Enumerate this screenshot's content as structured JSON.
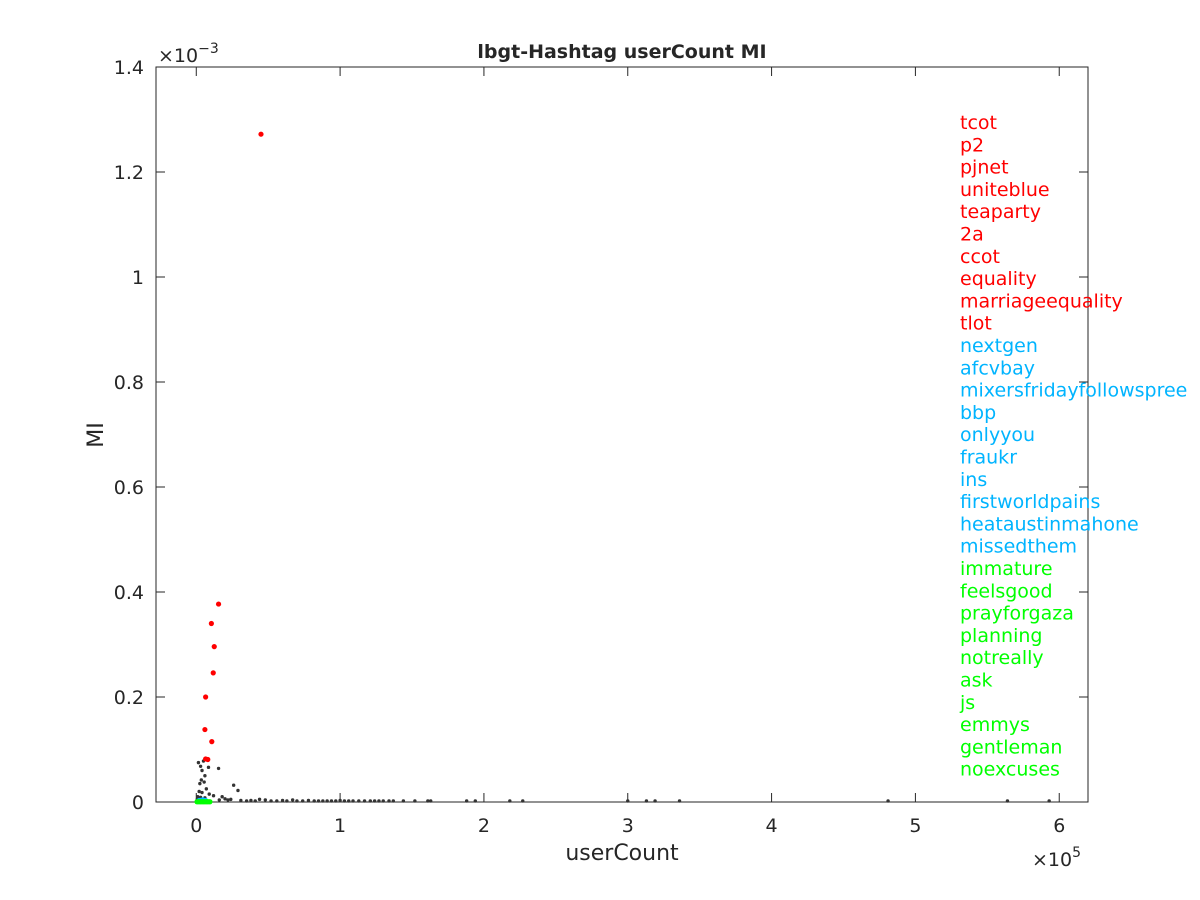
{
  "chart_data": {
    "type": "scatter",
    "title": "lbgt-Hashtag userCount MI",
    "xlabel": "userCount",
    "ylabel": "MI",
    "x_multiplier_label": "×10",
    "x_multiplier_exp": "5",
    "y_multiplier_label": "×10",
    "y_multiplier_exp": "−3",
    "xlim": [
      -28000,
      620000
    ],
    "ylim": [
      0,
      0.0014
    ],
    "xticks": [
      {
        "value": 0,
        "label": "0"
      },
      {
        "value": 100000,
        "label": "1"
      },
      {
        "value": 200000,
        "label": "2"
      },
      {
        "value": 300000,
        "label": "3"
      },
      {
        "value": 400000,
        "label": "4"
      },
      {
        "value": 500000,
        "label": "5"
      },
      {
        "value": 600000,
        "label": "6"
      }
    ],
    "yticks": [
      {
        "value": 0,
        "label": "0"
      },
      {
        "value": 0.0002,
        "label": "0.2"
      },
      {
        "value": 0.0004,
        "label": "0.4"
      },
      {
        "value": 0.0006,
        "label": "0.6"
      },
      {
        "value": 0.0008,
        "label": "0.8"
      },
      {
        "value": 0.001,
        "label": "1"
      },
      {
        "value": 0.0012,
        "label": "1.2"
      },
      {
        "value": 0.0014,
        "label": "1.4"
      }
    ],
    "grid": false,
    "colors": {
      "red": "#ff0000",
      "blue": "#00b4ff",
      "green": "#00ff00",
      "other": "#333333"
    },
    "series": [
      {
        "color_key": "red",
        "points": [
          [
            45000,
            0.001272
          ],
          [
            15500,
            0.000377
          ],
          [
            10500,
            0.00034
          ],
          [
            12500,
            0.000296
          ],
          [
            11800,
            0.000246
          ],
          [
            6500,
            0.0002
          ],
          [
            6000,
            0.000138
          ],
          [
            10800,
            0.000115
          ],
          [
            6500,
            8.2e-05
          ],
          [
            8000,
            8.1e-05
          ]
        ]
      },
      {
        "color_key": "blue",
        "points": [
          [
            2000,
            3e-06
          ],
          [
            3000,
            3e-06
          ],
          [
            4000,
            2e-06
          ],
          [
            5000,
            2e-06
          ],
          [
            6000,
            3e-06
          ],
          [
            3500,
            2e-06
          ],
          [
            4500,
            4e-06
          ],
          [
            2500,
            2e-06
          ],
          [
            5500,
            2e-06
          ],
          [
            6500,
            3e-06
          ]
        ]
      },
      {
        "color_key": "green",
        "points": [
          [
            500,
            5e-07
          ],
          [
            1500,
            5e-07
          ],
          [
            2500,
            5e-07
          ],
          [
            3500,
            5e-07
          ],
          [
            4500,
            5e-07
          ],
          [
            5500,
            5e-07
          ],
          [
            6500,
            5e-07
          ],
          [
            7500,
            5e-07
          ],
          [
            8500,
            5e-07
          ],
          [
            9500,
            5e-07
          ]
        ]
      },
      {
        "color_key": "other",
        "points": [
          [
            1500,
            7.5e-05
          ],
          [
            5000,
            7.8e-05
          ],
          [
            3000,
            6.8e-05
          ],
          [
            8500,
            6.6e-05
          ],
          [
            15500,
            6.4e-05
          ],
          [
            4000,
            6e-05
          ],
          [
            6000,
            5e-05
          ],
          [
            3500,
            4.2e-05
          ],
          [
            5500,
            3.8e-05
          ],
          [
            2500,
            3.5e-05
          ],
          [
            26000,
            3.2e-05
          ],
          [
            29000,
            2.2e-05
          ],
          [
            7000,
            2.5e-05
          ],
          [
            2000,
            2e-05
          ],
          [
            4000,
            1.8e-05
          ],
          [
            9000,
            1.5e-05
          ],
          [
            12000,
            1.2e-05
          ],
          [
            1000,
            1e-05
          ],
          [
            3000,
            9e-06
          ],
          [
            6000,
            8e-06
          ],
          [
            18000,
            1e-05
          ],
          [
            20000,
            6e-06
          ],
          [
            24000,
            5e-06
          ],
          [
            700,
            5e-06
          ],
          [
            1800,
            4e-06
          ],
          [
            16000,
            4e-06
          ],
          [
            22000,
            4e-06
          ],
          [
            31000,
            3e-06
          ],
          [
            35000,
            2e-06
          ],
          [
            38000,
            3e-06
          ],
          [
            41000,
            2e-06
          ],
          [
            44000,
            5e-06
          ],
          [
            48000,
            4e-06
          ],
          [
            52000,
            2e-06
          ],
          [
            56000,
            2e-06
          ],
          [
            60000,
            3e-06
          ],
          [
            63000,
            2e-06
          ],
          [
            67000,
            4e-06
          ],
          [
            70000,
            2e-06
          ],
          [
            74000,
            2e-06
          ],
          [
            78000,
            3e-06
          ],
          [
            82000,
            2e-06
          ],
          [
            85000,
            2e-06
          ],
          [
            88000,
            2e-06
          ],
          [
            91000,
            2e-06
          ],
          [
            94000,
            2e-06
          ],
          [
            97000,
            2e-06
          ],
          [
            100000,
            3e-06
          ],
          [
            103000,
            2e-06
          ],
          [
            106000,
            2e-06
          ],
          [
            109000,
            2e-06
          ],
          [
            113000,
            2e-06
          ],
          [
            117000,
            2e-06
          ],
          [
            121000,
            2e-06
          ],
          [
            124000,
            2e-06
          ],
          [
            127000,
            2e-06
          ],
          [
            130000,
            2e-06
          ],
          [
            134000,
            2e-06
          ],
          [
            137000,
            2e-06
          ],
          [
            144000,
            2e-06
          ],
          [
            152000,
            2e-06
          ],
          [
            161000,
            2e-06
          ],
          [
            163000,
            2e-06
          ],
          [
            188000,
            2e-06
          ],
          [
            194000,
            2e-06
          ],
          [
            218000,
            2e-06
          ],
          [
            227000,
            2e-06
          ],
          [
            300000,
            2e-06
          ],
          [
            313000,
            2e-06
          ],
          [
            319000,
            2e-06
          ],
          [
            336000,
            2e-06
          ],
          [
            481000,
            2e-06
          ],
          [
            564000,
            2e-06
          ],
          [
            593000,
            2e-06
          ]
        ]
      }
    ],
    "annotations": [
      {
        "text": "tcot",
        "color_key": "red"
      },
      {
        "text": "p2",
        "color_key": "red"
      },
      {
        "text": "pjnet",
        "color_key": "red"
      },
      {
        "text": "uniteblue",
        "color_key": "red"
      },
      {
        "text": "teaparty",
        "color_key": "red"
      },
      {
        "text": "2a",
        "color_key": "red"
      },
      {
        "text": "ccot",
        "color_key": "red"
      },
      {
        "text": "equality",
        "color_key": "red"
      },
      {
        "text": "marriageequality",
        "color_key": "red"
      },
      {
        "text": "tlot",
        "color_key": "red"
      },
      {
        "text": "nextgen",
        "color_key": "blue"
      },
      {
        "text": "afcvbay",
        "color_key": "blue"
      },
      {
        "text": "mixersfridayfollowspree",
        "color_key": "blue"
      },
      {
        "text": "bbp",
        "color_key": "blue"
      },
      {
        "text": "onlyyou",
        "color_key": "blue"
      },
      {
        "text": "fraukr",
        "color_key": "blue"
      },
      {
        "text": "ins",
        "color_key": "blue"
      },
      {
        "text": "firstworldpains",
        "color_key": "blue"
      },
      {
        "text": "heataustinmahone",
        "color_key": "blue"
      },
      {
        "text": "missedthem",
        "color_key": "blue"
      },
      {
        "text": "immature",
        "color_key": "green"
      },
      {
        "text": "feelsgood",
        "color_key": "green"
      },
      {
        "text": "prayforgaza",
        "color_key": "green"
      },
      {
        "text": "planning",
        "color_key": "green"
      },
      {
        "text": "notreally",
        "color_key": "green"
      },
      {
        "text": "ask",
        "color_key": "green"
      },
      {
        "text": "js",
        "color_key": "green"
      },
      {
        "text": "emmys",
        "color_key": "green"
      },
      {
        "text": "gentleman",
        "color_key": "green"
      },
      {
        "text": "noexcuses",
        "color_key": "green"
      }
    ]
  }
}
